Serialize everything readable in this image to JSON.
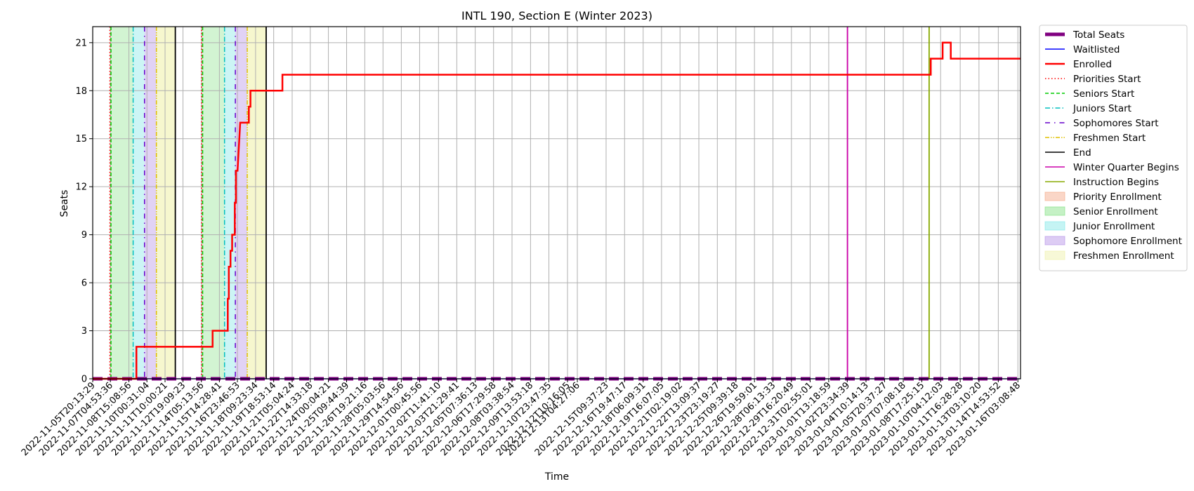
{
  "chart_data": {
    "type": "line",
    "title": "INTL 190, Section E (Winter 2023)",
    "xlabel": "Time",
    "ylabel": "Seats",
    "ylim": [
      0,
      22
    ],
    "yticks": [
      0,
      3,
      6,
      9,
      12,
      15,
      18,
      21
    ],
    "grid": true,
    "legend_position": "outside-right",
    "x_start": "2022-11-05T20:13:29",
    "x_end": "2023-01-16T08:00:00",
    "xtick_labels": [
      "2022-11-05T20:13:29",
      "2022-11-07T04:53:36",
      "2022-11-08T15:08:56",
      "2022-11-10T00:31:04",
      "2022-11-11T10:00:21",
      "2022-11-12T19:09:23",
      "2022-11-14T05:13:56",
      "2022-11-15T14:28:41",
      "2022-11-16T23:46:53",
      "2022-11-18T09:23:34",
      "2022-11-19T18:53:14",
      "2022-11-21T05:04:24",
      "2022-11-22T14:33:18",
      "2022-11-24T00:04:21",
      "2022-11-25T09:44:39",
      "2022-11-26T19:21:16",
      "2022-11-28T05:03:56",
      "2022-11-29T14:54:56",
      "2022-12-01T00:45:56",
      "2022-12-02T11:41:10",
      "2022-12-03T21:29:41",
      "2022-12-05T07:36:13",
      "2022-12-06T17:29:58",
      "2022-12-08T03:38:54",
      "2022-12-09T13:53:18",
      "2022-12-10T23:47:35",
      "2022-12-12T10:16:05",
      "2022-12-13T04:27:06",
      "2022-12-15T09:37:23",
      "2022-12-16T19:47:17",
      "2022-12-18T06:09:31",
      "2022-12-19T16:07:05",
      "2022-12-21T02:19:02",
      "2022-12-22T13:09:37",
      "2022-12-23T23:19:27",
      "2022-12-25T09:39:18",
      "2022-12-26T19:59:01",
      "2022-12-28T06:13:33",
      "2022-12-29T16:20:49",
      "2022-12-31T02:55:01",
      "2023-01-01T13:18:59",
      "2023-01-02T23:34:39",
      "2023-01-04T10:14:13",
      "2023-01-05T20:37:27",
      "2023-01-07T07:08:18",
      "2023-01-08T17:25:15",
      "2023-01-10T04:12:03",
      "2023-01-11T16:28:28",
      "2023-01-13T03:10:20",
      "2023-01-14T14:53:52",
      "2023-01-16T03:08:48"
    ],
    "series": [
      {
        "name": "Enrolled",
        "color": "#ff0000",
        "points": [
          [
            "2022-11-05T20:13:29",
            0
          ],
          [
            "2022-11-09T05:00:00",
            0
          ],
          [
            "2022-11-09T05:00:00",
            2
          ],
          [
            "2022-11-15T02:00:00",
            2
          ],
          [
            "2022-11-15T02:00:00",
            3
          ],
          [
            "2022-11-16T06:00:00",
            3
          ],
          [
            "2022-11-16T06:00:00",
            5
          ],
          [
            "2022-11-16T08:00:00",
            5
          ],
          [
            "2022-11-16T08:00:00",
            7
          ],
          [
            "2022-11-16T11:00:00",
            7
          ],
          [
            "2022-11-16T11:00:00",
            8
          ],
          [
            "2022-11-16T14:00:00",
            8
          ],
          [
            "2022-11-16T14:00:00",
            9
          ],
          [
            "2022-11-16T19:00:00",
            9
          ],
          [
            "2022-11-16T19:00:00",
            11
          ],
          [
            "2022-11-16T21:00:00",
            11
          ],
          [
            "2022-11-16T21:00:00",
            13
          ],
          [
            "2022-11-17T00:00:00",
            13
          ],
          [
            "2022-11-17T05:00:00",
            16
          ],
          [
            "2022-11-17T21:00:00",
            16
          ],
          [
            "2022-11-17T21:00:00",
            17
          ],
          [
            "2022-11-18T00:00:00",
            17
          ],
          [
            "2022-11-18T00:00:00",
            18
          ],
          [
            "2022-11-20T11:00:00",
            18
          ],
          [
            "2022-11-20T11:00:00",
            19
          ],
          [
            "2023-01-09T10:00:00",
            19
          ],
          [
            "2023-01-09T10:00:00",
            20
          ],
          [
            "2023-01-10T08:00:00",
            20
          ],
          [
            "2023-01-10T08:00:00",
            21
          ],
          [
            "2023-01-10T23:00:00",
            21
          ],
          [
            "2023-01-10T23:00:00",
            20
          ],
          [
            "2023-01-16T08:00:00",
            20
          ]
        ]
      },
      {
        "name": "Waitlisted",
        "color": "#0000ff",
        "points": [
          [
            "2022-11-05T20:13:29",
            0
          ],
          [
            "2023-01-16T08:00:00",
            0
          ]
        ]
      },
      {
        "name": "Total Seats",
        "color": "#800080",
        "points": [
          [
            "2022-11-05T20:13:29",
            0
          ],
          [
            "2023-01-16T08:00:00",
            0
          ]
        ]
      }
    ],
    "vertical_lines": [
      {
        "name": "Priorities Start",
        "color": "#ff0000",
        "style": "dotted",
        "x": [
          "2022-11-07T04:00:00",
          "2022-11-14T05:30:00"
        ]
      },
      {
        "name": "Seniors Start",
        "color": "#00cc00",
        "style": "dashed",
        "x": [
          "2022-11-07T06:00:00",
          "2022-11-14T07:30:00"
        ]
      },
      {
        "name": "Juniors Start",
        "color": "#00bfbf",
        "style": "dashdot",
        "x": [
          "2022-11-08T23:00:00",
          "2022-11-16T00:00:00"
        ]
      },
      {
        "name": "Sophomores Start",
        "color": "#6600cc",
        "style": "loosedashdot",
        "x": [
          "2022-11-09T20:00:00",
          "2022-11-16T20:00:00"
        ]
      },
      {
        "name": "Freshmen Start",
        "color": "#e0c000",
        "style": "dashdotdot",
        "x": [
          "2022-11-10T18:00:00",
          "2022-11-17T18:00:00"
        ]
      },
      {
        "name": "End",
        "color": "#000000",
        "style": "solid",
        "x": [
          "2022-11-12T05:00:00",
          "2022-11-19T05:00:00"
        ]
      },
      {
        "name": "Winter Quarter Begins",
        "color": "#cc00aa",
        "style": "solid",
        "x": [
          "2023-01-03T00:00:00"
        ]
      },
      {
        "name": "Instruction Begins",
        "color": "#88aa00",
        "style": "solid",
        "x": [
          "2023-01-09T07:00:00"
        ]
      }
    ],
    "shaded_regions": [
      {
        "name": "Priority Enrollment",
        "color": "#f4a582",
        "opacity": 0.35,
        "spans": [
          [
            "2022-11-07T04:00:00",
            "2022-11-07T06:00:00"
          ],
          [
            "2022-11-14T05:30:00",
            "2022-11-14T07:30:00"
          ]
        ]
      },
      {
        "name": "Senior Enrollment",
        "color": "#7fe07f",
        "opacity": 0.35,
        "spans": [
          [
            "2022-11-07T06:00:00",
            "2022-11-08T23:00:00"
          ],
          [
            "2022-11-14T07:30:00",
            "2022-11-16T00:00:00"
          ]
        ]
      },
      {
        "name": "Junior Enrollment",
        "color": "#7fe6e6",
        "opacity": 0.4,
        "spans": [
          [
            "2022-11-08T23:00:00",
            "2022-11-09T20:00:00"
          ],
          [
            "2022-11-16T00:00:00",
            "2022-11-16T20:00:00"
          ]
        ]
      },
      {
        "name": "Sophomore Enrollment",
        "color": "#b38ee6",
        "opacity": 0.4,
        "spans": [
          [
            "2022-11-09T20:00:00",
            "2022-11-10T18:00:00"
          ],
          [
            "2022-11-16T20:00:00",
            "2022-11-17T18:00:00"
          ]
        ]
      },
      {
        "name": "Freshmen Enrollment",
        "color": "#eef0a6",
        "opacity": 0.55,
        "spans": [
          [
            "2022-11-10T18:00:00",
            "2022-11-12T05:00:00"
          ],
          [
            "2022-11-17T18:00:00",
            "2022-11-19T05:00:00"
          ]
        ]
      }
    ],
    "legend": [
      {
        "label": "Total Seats",
        "kind": "line",
        "color": "#800080",
        "style": "thick"
      },
      {
        "label": "Waitlisted",
        "kind": "line",
        "color": "#0000ff",
        "style": "solid"
      },
      {
        "label": "Enrolled",
        "kind": "line",
        "color": "#ff0000",
        "style": "bold"
      },
      {
        "label": "Priorities Start",
        "kind": "line",
        "color": "#ff0000",
        "style": "dotted"
      },
      {
        "label": "Seniors Start",
        "kind": "line",
        "color": "#00cc00",
        "style": "dashed"
      },
      {
        "label": "Juniors Start",
        "kind": "line",
        "color": "#00bfbf",
        "style": "dashdot"
      },
      {
        "label": "Sophomores Start",
        "kind": "line",
        "color": "#6600cc",
        "style": "loosedashdot"
      },
      {
        "label": "Freshmen Start",
        "kind": "line",
        "color": "#e0c000",
        "style": "dashdotdot"
      },
      {
        "label": "End",
        "kind": "line",
        "color": "#000000",
        "style": "solid"
      },
      {
        "label": "Winter Quarter Begins",
        "kind": "line",
        "color": "#cc00aa",
        "style": "solid"
      },
      {
        "label": "Instruction Begins",
        "kind": "line",
        "color": "#88aa00",
        "style": "solid"
      },
      {
        "label": "Priority Enrollment",
        "kind": "patch",
        "color": "#f4a582"
      },
      {
        "label": "Senior Enrollment",
        "kind": "patch",
        "color": "#7fe07f"
      },
      {
        "label": "Junior Enrollment",
        "kind": "patch",
        "color": "#7fe6e6"
      },
      {
        "label": "Sophomore Enrollment",
        "kind": "patch",
        "color": "#b38ee6"
      },
      {
        "label": "Freshmen Enrollment",
        "kind": "patch",
        "color": "#eef0a6"
      }
    ]
  }
}
